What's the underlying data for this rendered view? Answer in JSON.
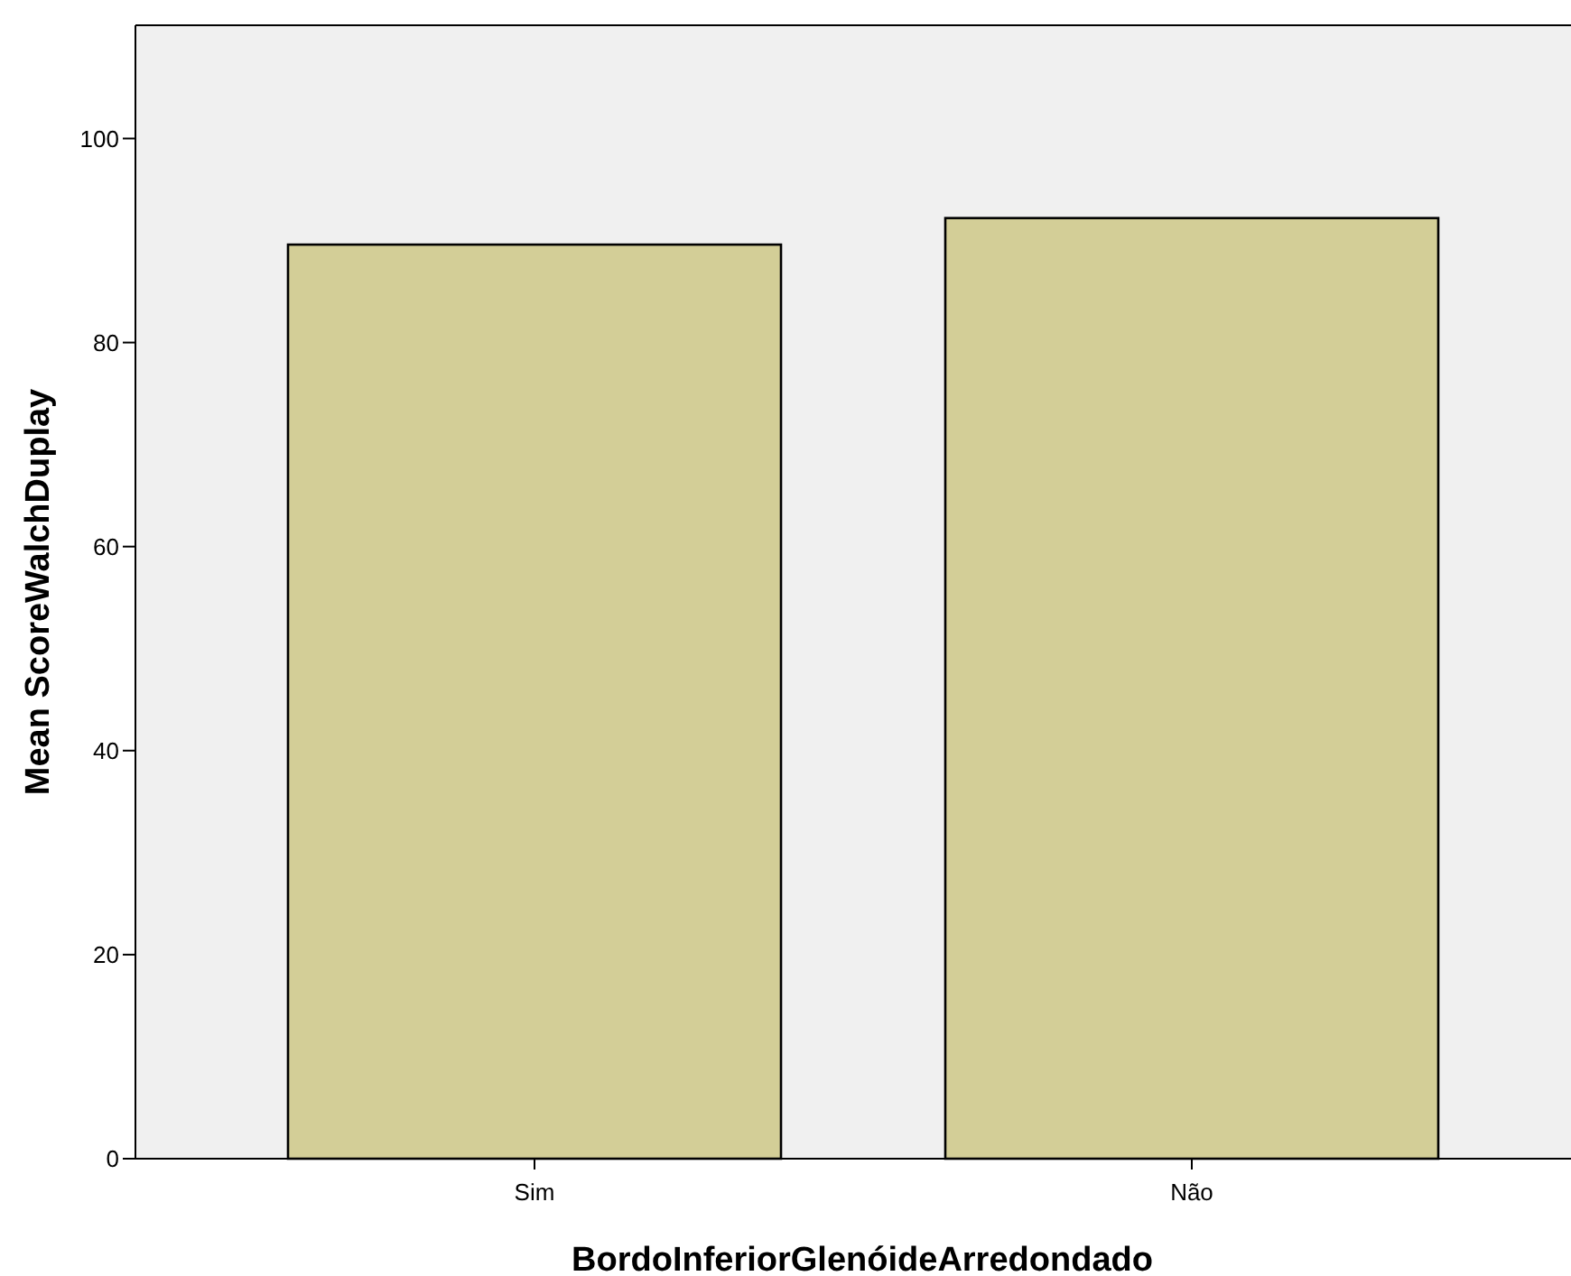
{
  "chart_data": {
    "type": "bar",
    "xlabel": "BordoInferiorGlenóideArredondado",
    "ylabel": "Mean ScoreWalchDuplay",
    "categories": [
      "Sim",
      "Não"
    ],
    "values": [
      89.6,
      92.2
    ],
    "color": "#d3ce97",
    "ylim": [
      0,
      111.1
    ],
    "yticks": [
      0,
      20,
      40,
      60,
      80,
      100
    ],
    "grid": false
  }
}
